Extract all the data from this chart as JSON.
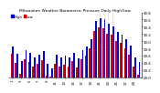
{
  "title": "Milwaukee Weather Barometric Pressure Daily High/Low",
  "background_color": "#ffffff",
  "high_color": "#0000dd",
  "low_color": "#dd0000",
  "ylim": [
    29.0,
    30.8
  ],
  "yticks": [
    29.0,
    29.2,
    29.4,
    29.6,
    29.8,
    30.0,
    30.2,
    30.4,
    30.6,
    30.8
  ],
  "dates": [
    "1",
    "2",
    "3",
    "4",
    "5",
    "6",
    "7",
    "8",
    "9",
    "10",
    "11",
    "12",
    "13",
    "14",
    "15",
    "16",
    "17",
    "18",
    "19",
    "20",
    "21",
    "22",
    "23",
    "24",
    "25",
    "26",
    "27",
    "28",
    "29",
    "30"
  ],
  "highs": [
    29.85,
    29.65,
    29.45,
    29.75,
    29.68,
    29.55,
    29.62,
    29.72,
    29.38,
    29.25,
    29.62,
    29.55,
    29.6,
    29.55,
    29.68,
    29.52,
    29.75,
    29.85,
    30.05,
    30.55,
    30.65,
    30.6,
    30.48,
    30.42,
    30.25,
    30.18,
    30.05,
    29.88,
    29.55,
    29.42
  ],
  "lows": [
    29.65,
    29.4,
    29.1,
    29.5,
    29.42,
    29.3,
    29.38,
    29.48,
    29.05,
    29.02,
    29.38,
    29.3,
    29.35,
    29.3,
    29.45,
    29.28,
    29.5,
    29.6,
    29.8,
    30.28,
    30.38,
    30.35,
    30.22,
    30.18,
    30.0,
    29.95,
    29.8,
    29.62,
    29.3,
    29.08
  ],
  "baseline": 29.0,
  "dashed_indices": [
    20,
    21,
    22,
    23
  ]
}
